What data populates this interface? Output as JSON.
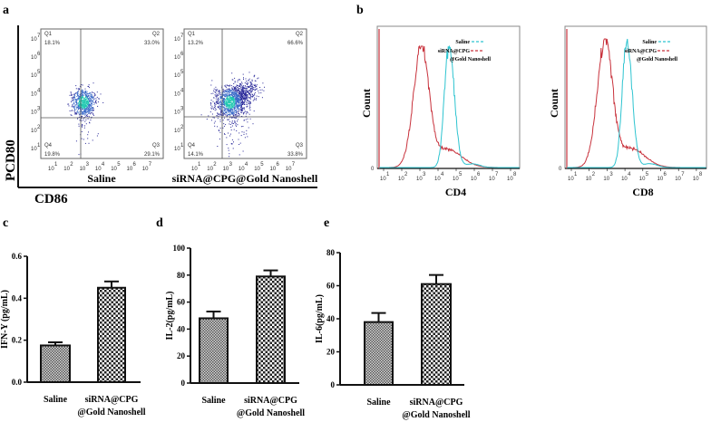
{
  "panel_labels": {
    "a": "a",
    "b": "b",
    "c": "c",
    "d": "d",
    "e": "e"
  },
  "colors": {
    "saline_hist": "#2ec4d0",
    "treated_hist": "#c8323c",
    "axis": "#111111",
    "dot_low": "#2a2a9a",
    "dot_high": "#20c8b0"
  },
  "chart_data": [
    {
      "id": "a",
      "type": "scatter",
      "xlabel": "CD86",
      "ylabel": "PCD80",
      "tick_labels": [
        "10",
        "10",
        "10",
        "10",
        "10",
        "10",
        "10"
      ],
      "tick_exponents": [
        "1",
        "2",
        "3",
        "4",
        "5",
        "6",
        "7"
      ],
      "plots": [
        {
          "name": "Saline",
          "quadrants": {
            "Q1": "18.1%",
            "Q2": "33.0%",
            "Q3": "29.1%",
            "Q4": "19.8%"
          },
          "center_log": [
            3.0,
            3.5
          ]
        },
        {
          "name": "siRNA@CPG@Gold Nanoshell",
          "quadrants": {
            "Q1": "13.2%",
            "Q2": "66.6%",
            "Q3": "33.8%",
            "Q4": "14.1%"
          },
          "center_log": [
            3.2,
            3.5
          ]
        }
      ],
      "quadrant_names": [
        "Q1",
        "Q2",
        "Q3",
        "Q4"
      ]
    },
    {
      "id": "b",
      "type": "line",
      "ylabel": "Count",
      "zero_label": "0",
      "tick_exponents": [
        "1",
        "2",
        "3",
        "4",
        "5",
        "6",
        "7",
        "8"
      ],
      "legend": {
        "saline": "Saline",
        "treated_line1": "siRNA@CPG",
        "treated_line2": "@Gold Nanoshell"
      },
      "plots": [
        {
          "xlabel": "CD4",
          "saline_peak_log": 4.6,
          "treated_peak_log": 3.1
        },
        {
          "xlabel": "CD8",
          "saline_peak_log": 4.1,
          "treated_peak_log": 2.9
        }
      ]
    },
    {
      "id": "c",
      "type": "bar",
      "categories": [
        "Saline",
        "siRNA@CPG\n@Gold Nanoshell"
      ],
      "category_lines": [
        [
          "Saline"
        ],
        [
          "siRNA@CPG",
          "@Gold Nanoshell"
        ]
      ],
      "values": [
        0.175,
        0.45
      ],
      "errors": [
        0.015,
        0.03
      ],
      "ylabel": "IFN-Y (pg/mL)",
      "ylim": [
        0,
        0.6
      ],
      "yticks": [
        "0.0",
        "0.2",
        "0.4",
        "0.6"
      ]
    },
    {
      "id": "d",
      "type": "bar",
      "categories": [
        "Saline",
        "siRNA@CPG\n@Gold Nanoshell"
      ],
      "category_lines": [
        [
          "Saline"
        ],
        [
          "siRNA@CPG",
          "@Gold Nanoshell"
        ]
      ],
      "values": [
        48,
        79
      ],
      "errors": [
        5,
        4.5
      ],
      "ylabel": "IL-2(pg/mL)",
      "ylim": [
        0,
        100
      ],
      "yticks": [
        "0",
        "20",
        "40",
        "60",
        "80",
        "100"
      ]
    },
    {
      "id": "e",
      "type": "bar",
      "categories": [
        "Saline",
        "siRNA@CPG\n@Gold Nanoshell"
      ],
      "category_lines": [
        [
          "Saline"
        ],
        [
          "siRNA@CPG",
          "@Gold Nanoshell"
        ]
      ],
      "values": [
        38,
        61
      ],
      "errors": [
        5.5,
        5.5
      ],
      "ylabel": "IL-6(pg/mL)",
      "ylim": [
        0,
        80
      ],
      "yticks": [
        "0",
        "20",
        "40",
        "60",
        "80"
      ]
    }
  ]
}
